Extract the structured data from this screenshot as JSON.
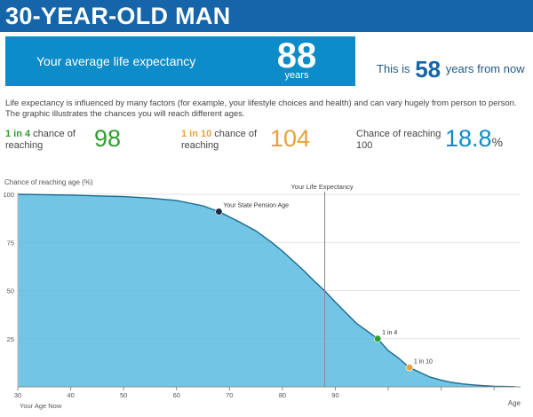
{
  "header": {
    "title": "30-YEAR-OLD MAN"
  },
  "expectancy": {
    "label": "Your average life expectancy",
    "value": "88",
    "unit": "years"
  },
  "from_now": {
    "prefix": "This is",
    "value": "58",
    "suffix": "years from now"
  },
  "description": "Life expectancy is influenced by many factors (for example, your lifestyle choices and health) and can vary hugely from person to person. The graphic illustrates the chances you will reach different ages.",
  "stats": [
    {
      "odds": "1 in 4",
      "label_rest": " chance of",
      "label_line2": "reaching",
      "value": "98"
    },
    {
      "odds": "1 in 10",
      "label_rest": " chance of",
      "label_line2": "reaching",
      "value": "104"
    },
    {
      "label_line1": "Chance of reaching",
      "label_line2": "100",
      "value": "18.8",
      "unit": "%"
    }
  ],
  "colors": {
    "title_bg": "#1565a8",
    "box_bg": "#0c8cc8",
    "area_fill": "#5bbbe0",
    "curve": "#1a6b8f",
    "green": "#2e9e2e",
    "orange": "#e8a23a",
    "navy": "#1a2a4a"
  },
  "chart_data": {
    "type": "area",
    "ylabel": "Chance of reaching age (%)",
    "xlabel": "Age",
    "x_start_label": "Your Age Now",
    "xlim": [
      30,
      125
    ],
    "ylim": [
      0,
      100
    ],
    "xticks": [
      30,
      40,
      50,
      60,
      70,
      80,
      90,
      100,
      110,
      120
    ],
    "xtick_labels": [
      "30",
      "40",
      "50",
      "60",
      "70",
      "80",
      "90",
      "",
      "",
      ""
    ],
    "yticks": [
      0,
      25,
      50,
      75,
      100
    ],
    "ytick_labels": [
      "",
      "25",
      "50",
      "75",
      "100"
    ],
    "grid": true,
    "series": [
      {
        "x": [
          30,
          40,
          50,
          55,
          60,
          65,
          68,
          72,
          75,
          78,
          80,
          82,
          84,
          86,
          88,
          90,
          92,
          94,
          96,
          98,
          100,
          102,
          104,
          106,
          108,
          110,
          112,
          114,
          116,
          118,
          120,
          122,
          124
        ],
        "values": [
          100,
          99.6,
          98.8,
          98,
          96.8,
          94,
          91,
          85.5,
          81,
          75,
          70.5,
          65.5,
          60.5,
          55,
          49.8,
          44,
          38.5,
          33,
          29,
          25,
          18.8,
          14.8,
          10,
          7.5,
          5,
          3.5,
          2.3,
          1.5,
          1,
          0.6,
          0.3,
          0.2,
          0.1
        ]
      }
    ],
    "vlines": [
      {
        "x": 88,
        "label": "Your Life Expectancy"
      }
    ],
    "points": [
      {
        "x": 68,
        "y": 91,
        "label": "Your State Pension Age",
        "color": "#1a2a4a"
      },
      {
        "x": 98,
        "y": 25,
        "label": "1 in 4",
        "color": "#2e9e2e"
      },
      {
        "x": 104,
        "y": 10,
        "label": "1 in 10",
        "color": "#e8a23a"
      }
    ]
  }
}
